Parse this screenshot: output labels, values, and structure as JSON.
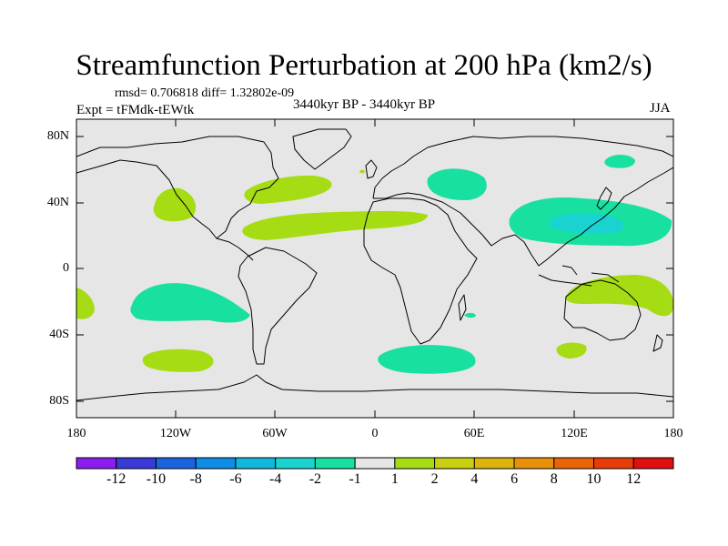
{
  "title": "Streamfunction Perturbation at 200 hPa (km2/s)",
  "stats": "rmsd= 0.706818 diff= 1.32802e-09",
  "expt": "Expt = tFMdk-tEWtk",
  "period": "3440kyr BP - 3440kyr BP",
  "season": "JJA",
  "lat_labels": [
    "80N",
    "40N",
    "0",
    "40S",
    "80S"
  ],
  "lon_labels": [
    "180",
    "120W",
    "60W",
    "0",
    "60E",
    "120E",
    "180"
  ],
  "colorbar": {
    "labels": [
      "-12",
      "-10",
      "-8",
      "-6",
      "-4",
      "-2",
      "-1",
      "1",
      "2",
      "4",
      "6",
      "8",
      "10",
      "12"
    ],
    "colors": [
      "#8c1cf0",
      "#3a3ad8",
      "#1a64e0",
      "#0e8ce6",
      "#10b8dc",
      "#1ad2d0",
      "#18e0a0",
      "#e6e6e6",
      "#a6dc14",
      "#c8d010",
      "#dcb40c",
      "#e8900c",
      "#ec6408",
      "#e83c08",
      "#e01010"
    ]
  },
  "colors": {
    "land_bg": "#e6e6e6",
    "neg_light": "#18e0a0",
    "neg_mid": "#1ad2d0",
    "pos_light": "#a6dc14"
  }
}
